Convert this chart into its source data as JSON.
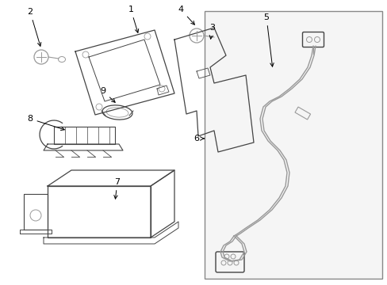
{
  "bg_color": "#ffffff",
  "line_color": "#999999",
  "dark_line": "#444444",
  "label_color": "#000000",
  "figsize": [
    4.89,
    3.6
  ],
  "dpi": 100
}
